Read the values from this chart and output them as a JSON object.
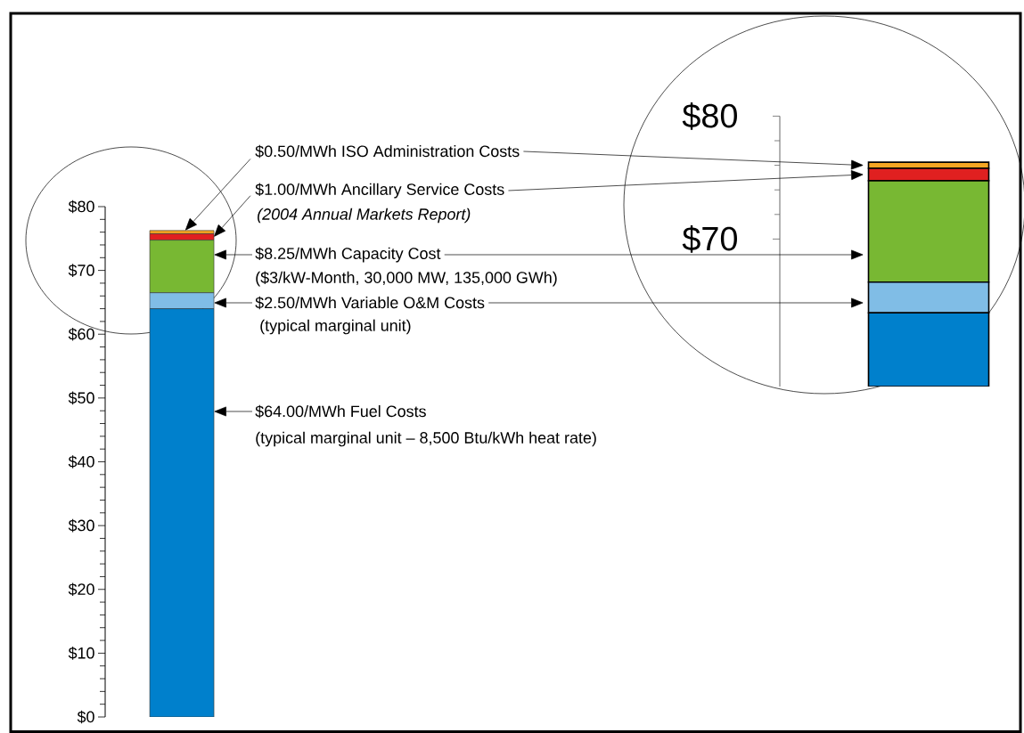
{
  "chart_data": [
    {
      "type": "bar",
      "stacked": true,
      "categories": [
        null
      ],
      "series": [
        {
          "color": "#0080cc",
          "values": [
            64.0
          ]
        },
        {
          "color": "#80bde6",
          "values": [
            2.5
          ]
        },
        {
          "color": "#78b833",
          "values": [
            8.25
          ]
        },
        {
          "color": "#e02020",
          "values": [
            1.0
          ]
        },
        {
          "color": "#f5a623",
          "values": [
            0.5
          ]
        }
      ],
      "ylim": [
        0,
        80
      ],
      "yticks": [
        {
          "value": 0,
          "label": "$0"
        },
        {
          "value": 10,
          "label": "$10"
        },
        {
          "value": 20,
          "label": "$20"
        },
        {
          "value": 30,
          "label": "$30"
        },
        {
          "value": 40,
          "label": "$40"
        },
        {
          "value": 50,
          "label": "$50"
        },
        {
          "value": 60,
          "label": "$60"
        },
        {
          "value": 70,
          "label": "$70"
        },
        {
          "value": 80,
          "label": "$80"
        }
      ],
      "annotations": [
        "$0.50/MWh ISO Administration Costs",
        "$1.00/MWh Ancillary Service Costs",
        "(2004 Annual Markets Report)",
        "$8.25/MWh Capacity Cost",
        "($3/kW-Month, 30,000 MW, 135,000 GWh)",
        "$2.50/MWh Variable O&M Costs",
        "(typical marginal unit)",
        "$64.00/MWh Fuel Costs",
        "(typical marginal unit – 8,500 Btu/kWh heat rate)"
      ]
    }
  ]
}
